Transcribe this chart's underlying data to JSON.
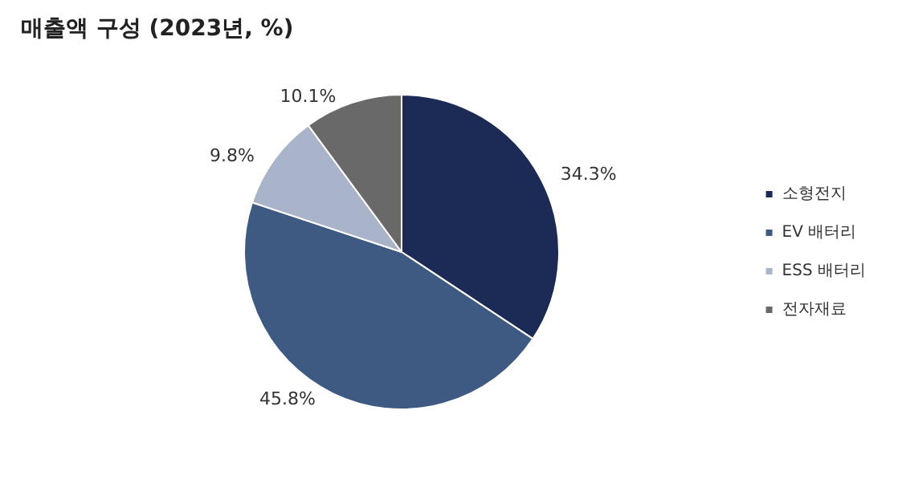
{
  "chart_data": {
    "type": "pie",
    "title": "매출액 구성 (2023년, %)",
    "categories": [
      "소형전지",
      "EV 배터리",
      "ESS 배터리",
      "전자재료"
    ],
    "values": [
      34.3,
      45.8,
      9.8,
      10.1
    ],
    "value_labels": [
      "34.3%",
      "45.8%",
      "9.8%",
      "10.1%"
    ],
    "colors": [
      "#1c2b55",
      "#3f5a82",
      "#a9b3c9",
      "#696969"
    ],
    "legend": "right"
  }
}
